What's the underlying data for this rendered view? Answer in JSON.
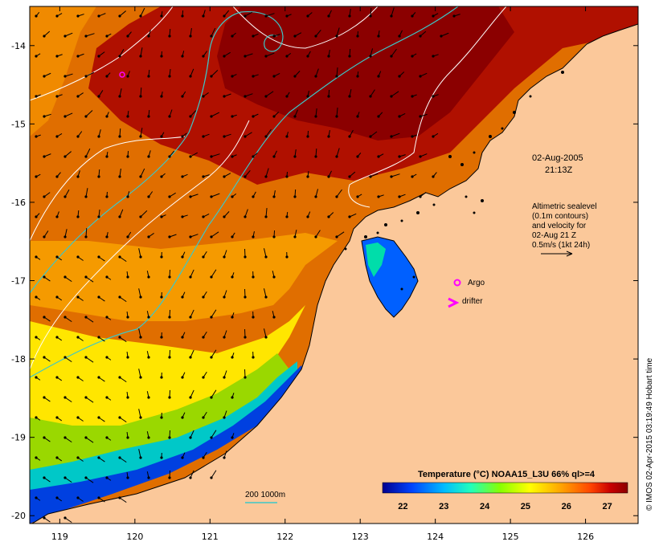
{
  "map": {
    "xaxis": {
      "ticks": [
        "119",
        "120",
        "121",
        "122",
        "123",
        "124",
        "125",
        "126"
      ]
    },
    "yaxis": {
      "ticks": [
        "-14",
        "-15",
        "-16",
        "-17",
        "-18",
        "-19",
        "-20"
      ]
    },
    "lon_range": [
      118.6,
      126.7
    ],
    "lat_range": [
      -20.1,
      -13.5
    ]
  },
  "annotations": {
    "date_line1": "02-Aug-2005",
    "date_line2": "21:13Z",
    "legend_lines": [
      "Altimetric sealevel",
      "(0.1m contours)",
      "and velocity for",
      "02-Aug 21 Z",
      "0.5m/s (1kt 24h)"
    ],
    "argo_label": "Argo",
    "drifter_label": "drifter",
    "depth_label": "200  1000m"
  },
  "colorbar": {
    "title": "Temperature (°C) NOAA15_L3U 66% ql>=4",
    "ticks": [
      "22",
      "23",
      "24",
      "25",
      "26",
      "27"
    ],
    "range": [
      21.5,
      27.5
    ],
    "colors": [
      "#00008f",
      "#0044ff",
      "#00bbff",
      "#22ffbb",
      "#88ff00",
      "#ffff00",
      "#ffaa00",
      "#ff4400",
      "#c80000",
      "#8b0000"
    ]
  },
  "credit": "© IMOS 02-Apr-2015 03:19:49 Hobart time",
  "colors": {
    "land": "#fbc89a",
    "contour_sealevel": "#ffffff",
    "contour_depth": "#3cc8c8",
    "argo": "#ff00ff",
    "drifter": "#ff00ff",
    "arrow": "#000000"
  }
}
